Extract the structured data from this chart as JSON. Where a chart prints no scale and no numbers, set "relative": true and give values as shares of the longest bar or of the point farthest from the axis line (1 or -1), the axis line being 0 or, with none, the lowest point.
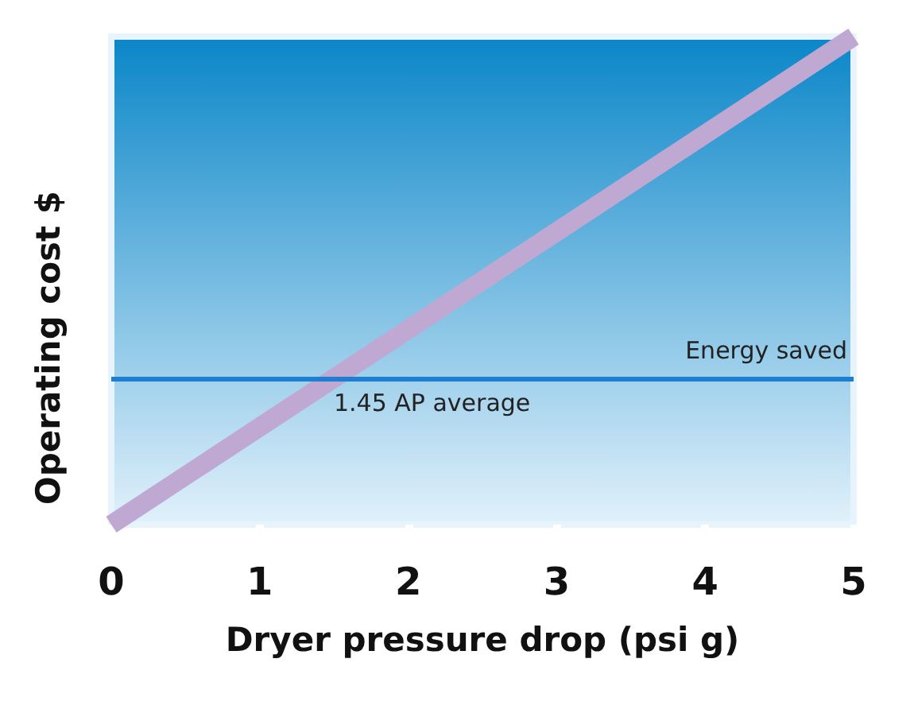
{
  "chart_data": {
    "type": "line",
    "xlabel": "Dryer pressure drop (psi g)",
    "ylabel": "Operating cost $",
    "relative": true,
    "xlim": [
      0,
      5
    ],
    "xticks": [
      0,
      1,
      2,
      3,
      4,
      5
    ],
    "grid": false,
    "marker": "none",
    "line_style": "solid",
    "series": [
      {
        "color": "#bfa9d2",
        "x": [
          0,
          5
        ],
        "values": [
          0,
          1
        ]
      }
    ],
    "ref_lines": [
      {
        "axis": "y",
        "value": 0.3,
        "label": "1.45 AP average",
        "color": "#1e7fd0"
      }
    ],
    "annotations": [
      "Energy saved"
    ]
  }
}
